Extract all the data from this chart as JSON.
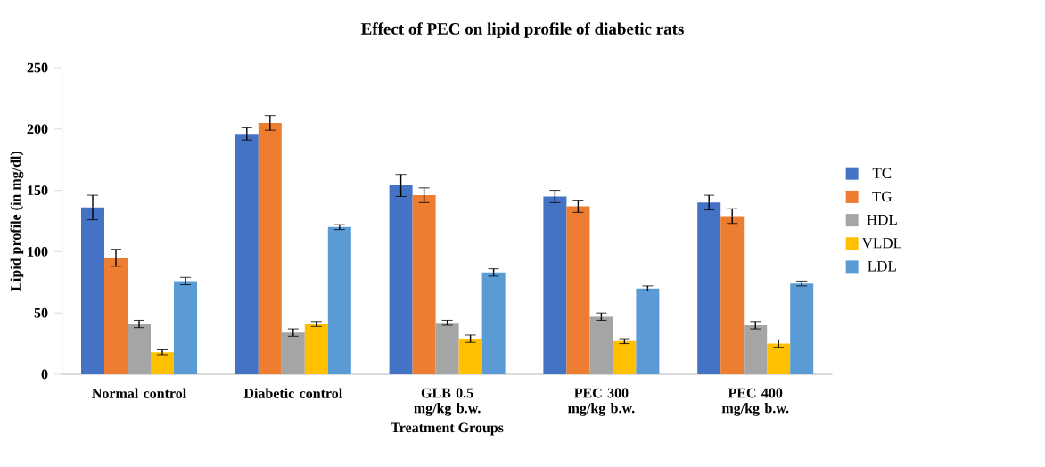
{
  "chart_data": {
    "type": "bar",
    "title": "Effect of PEC on lipid  profile of diabetic rats",
    "xlabel": "Treatment Groups",
    "ylabel": "Lipid profile (in mg/dl)",
    "categories": [
      "Normal control",
      "Diabetic control",
      "GLB 0.5 mg/kg b.w.",
      "PEC 300 mg/kg b.w.",
      "PEC 400 mg/kg b.w."
    ],
    "series": [
      {
        "name": "TC",
        "color": "#4472c4",
        "values": [
          136,
          196,
          154,
          145,
          140
        ],
        "errors": [
          10,
          5,
          9,
          5,
          6
        ]
      },
      {
        "name": "TG",
        "color": "#ed7d31",
        "values": [
          95,
          205,
          146,
          137,
          129
        ],
        "errors": [
          7,
          6,
          6,
          5,
          6
        ]
      },
      {
        "name": "HDL",
        "color": "#a5a5a5",
        "values": [
          41,
          34,
          42,
          47,
          40
        ],
        "errors": [
          3,
          3,
          2,
          3,
          3
        ]
      },
      {
        "name": "VLDL",
        "color": "#ffc000",
        "values": [
          18,
          41,
          29,
          27,
          25
        ],
        "errors": [
          2,
          2,
          3,
          2,
          3
        ]
      },
      {
        "name": "LDL",
        "color": "#5b9bd5",
        "values": [
          76,
          120,
          83,
          70,
          74
        ],
        "errors": [
          3,
          2,
          3,
          2,
          2
        ]
      }
    ],
    "ylim": [
      0,
      250
    ],
    "yticks": [
      0,
      50,
      100,
      150,
      200,
      250
    ],
    "legend": "right"
  }
}
